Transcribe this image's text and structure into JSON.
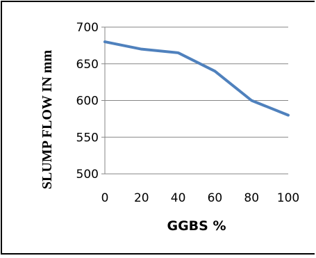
{
  "chart_data": {
    "type": "line",
    "xlabel": "GGBS %",
    "ylabel": "SLUMP FLOW IN mm",
    "x": [
      0,
      20,
      40,
      60,
      80,
      100
    ],
    "xlim": [
      0,
      100
    ],
    "ylim": [
      500,
      700
    ],
    "xticks": [
      "0",
      "20",
      "40",
      "60",
      "80",
      "100"
    ],
    "yticks": [
      "500",
      "550",
      "600",
      "650",
      "700"
    ],
    "grid": "horizontal",
    "legend": "none",
    "series": [
      {
        "values": [
          680,
          670,
          665,
          640,
          600,
          580
        ],
        "color": "#4F81BD"
      }
    ],
    "colors": {
      "frame": "#000000",
      "gridline": "#868686",
      "text": "#000000"
    }
  }
}
